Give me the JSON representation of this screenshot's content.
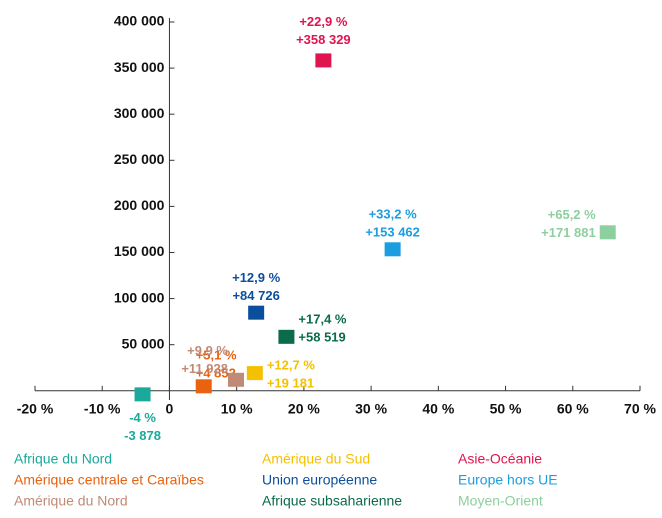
{
  "chart_data": {
    "type": "scatter",
    "xlim": [
      -20,
      70
    ],
    "xticks": [
      {
        "value": -20,
        "label": "-20 %"
      },
      {
        "value": -10,
        "label": "-10 %"
      },
      0,
      {
        "value": 10,
        "label": "10 %"
      },
      {
        "value": 20,
        "label": "20 %"
      },
      {
        "value": 30,
        "label": "30 %"
      },
      {
        "value": 40,
        "label": "40 %"
      },
      {
        "value": 50,
        "label": "50 %"
      },
      {
        "value": 60,
        "label": "60 %"
      },
      {
        "value": 70,
        "label": "70 %"
      }
    ],
    "ylim": [
      -10000,
      400000
    ],
    "yticks": [
      {
        "value": 50000,
        "label": "50 000"
      },
      {
        "value": 100000,
        "label": "100 000"
      },
      {
        "value": 150000,
        "label": "150 000"
      },
      {
        "value": 200000,
        "label": "200 000"
      },
      {
        "value": 250000,
        "label": "250 000"
      },
      {
        "value": 300000,
        "label": "300 000"
      },
      {
        "value": 350000,
        "label": "350 000"
      },
      {
        "value": 400000,
        "label": "400 000"
      }
    ],
    "legend": "bottom",
    "series": [
      {
        "name": "Afrique du Nord",
        "color": "#1aa99b",
        "x": [
          -4
        ],
        "x_labels": [
          "-4 %"
        ],
        "values": [
          -3878
        ],
        "value_labels": [
          "-3 878"
        ]
      },
      {
        "name": "Amérique centrale et Caraïbes",
        "color": "#e8620f",
        "x": [
          5.1
        ],
        "x_labels": [
          "+5,1 %"
        ],
        "values": [
          4852
        ],
        "value_labels": [
          "+4 852"
        ]
      },
      {
        "name": "Amérique du Nord",
        "color": "#c08a77",
        "x": [
          9.9
        ],
        "x_labels": [
          "+9,9 %"
        ],
        "values": [
          11928
        ],
        "value_labels": [
          "+11 928"
        ]
      },
      {
        "name": "Amérique du Sud",
        "color": "#f5c000",
        "x": [
          12.7
        ],
        "x_labels": [
          "+12,7 %"
        ],
        "values": [
          19181
        ],
        "value_labels": [
          "+19 181"
        ]
      },
      {
        "name": "Union européenne",
        "color": "#0b4f9c",
        "x": [
          12.9
        ],
        "x_labels": [
          "+12,9 %"
        ],
        "values": [
          84726
        ],
        "value_labels": [
          "+84 726"
        ]
      },
      {
        "name": "Afrique subsaharienne",
        "color": "#0b6b4a",
        "x": [
          17.4
        ],
        "x_labels": [
          "+17,4 %"
        ],
        "values": [
          58519
        ],
        "value_labels": [
          "+58 519"
        ]
      },
      {
        "name": "Asie-Océanie",
        "color": "#e0144f",
        "x": [
          22.9
        ],
        "x_labels": [
          "+22,9 %"
        ],
        "values": [
          358329
        ],
        "value_labels": [
          "+358 329"
        ]
      },
      {
        "name": "Europe hors UE",
        "color": "#1a9ee0",
        "x": [
          33.2
        ],
        "x_labels": [
          "+33,2 %"
        ],
        "values": [
          153462
        ],
        "value_labels": [
          "+153 462"
        ]
      },
      {
        "name": "Moyen-Orient",
        "color": "#8dcf9e",
        "x": [
          65.2
        ],
        "x_labels": [
          "+65,2 %"
        ],
        "values": [
          171881
        ],
        "value_labels": [
          "+171 881"
        ]
      }
    ]
  }
}
